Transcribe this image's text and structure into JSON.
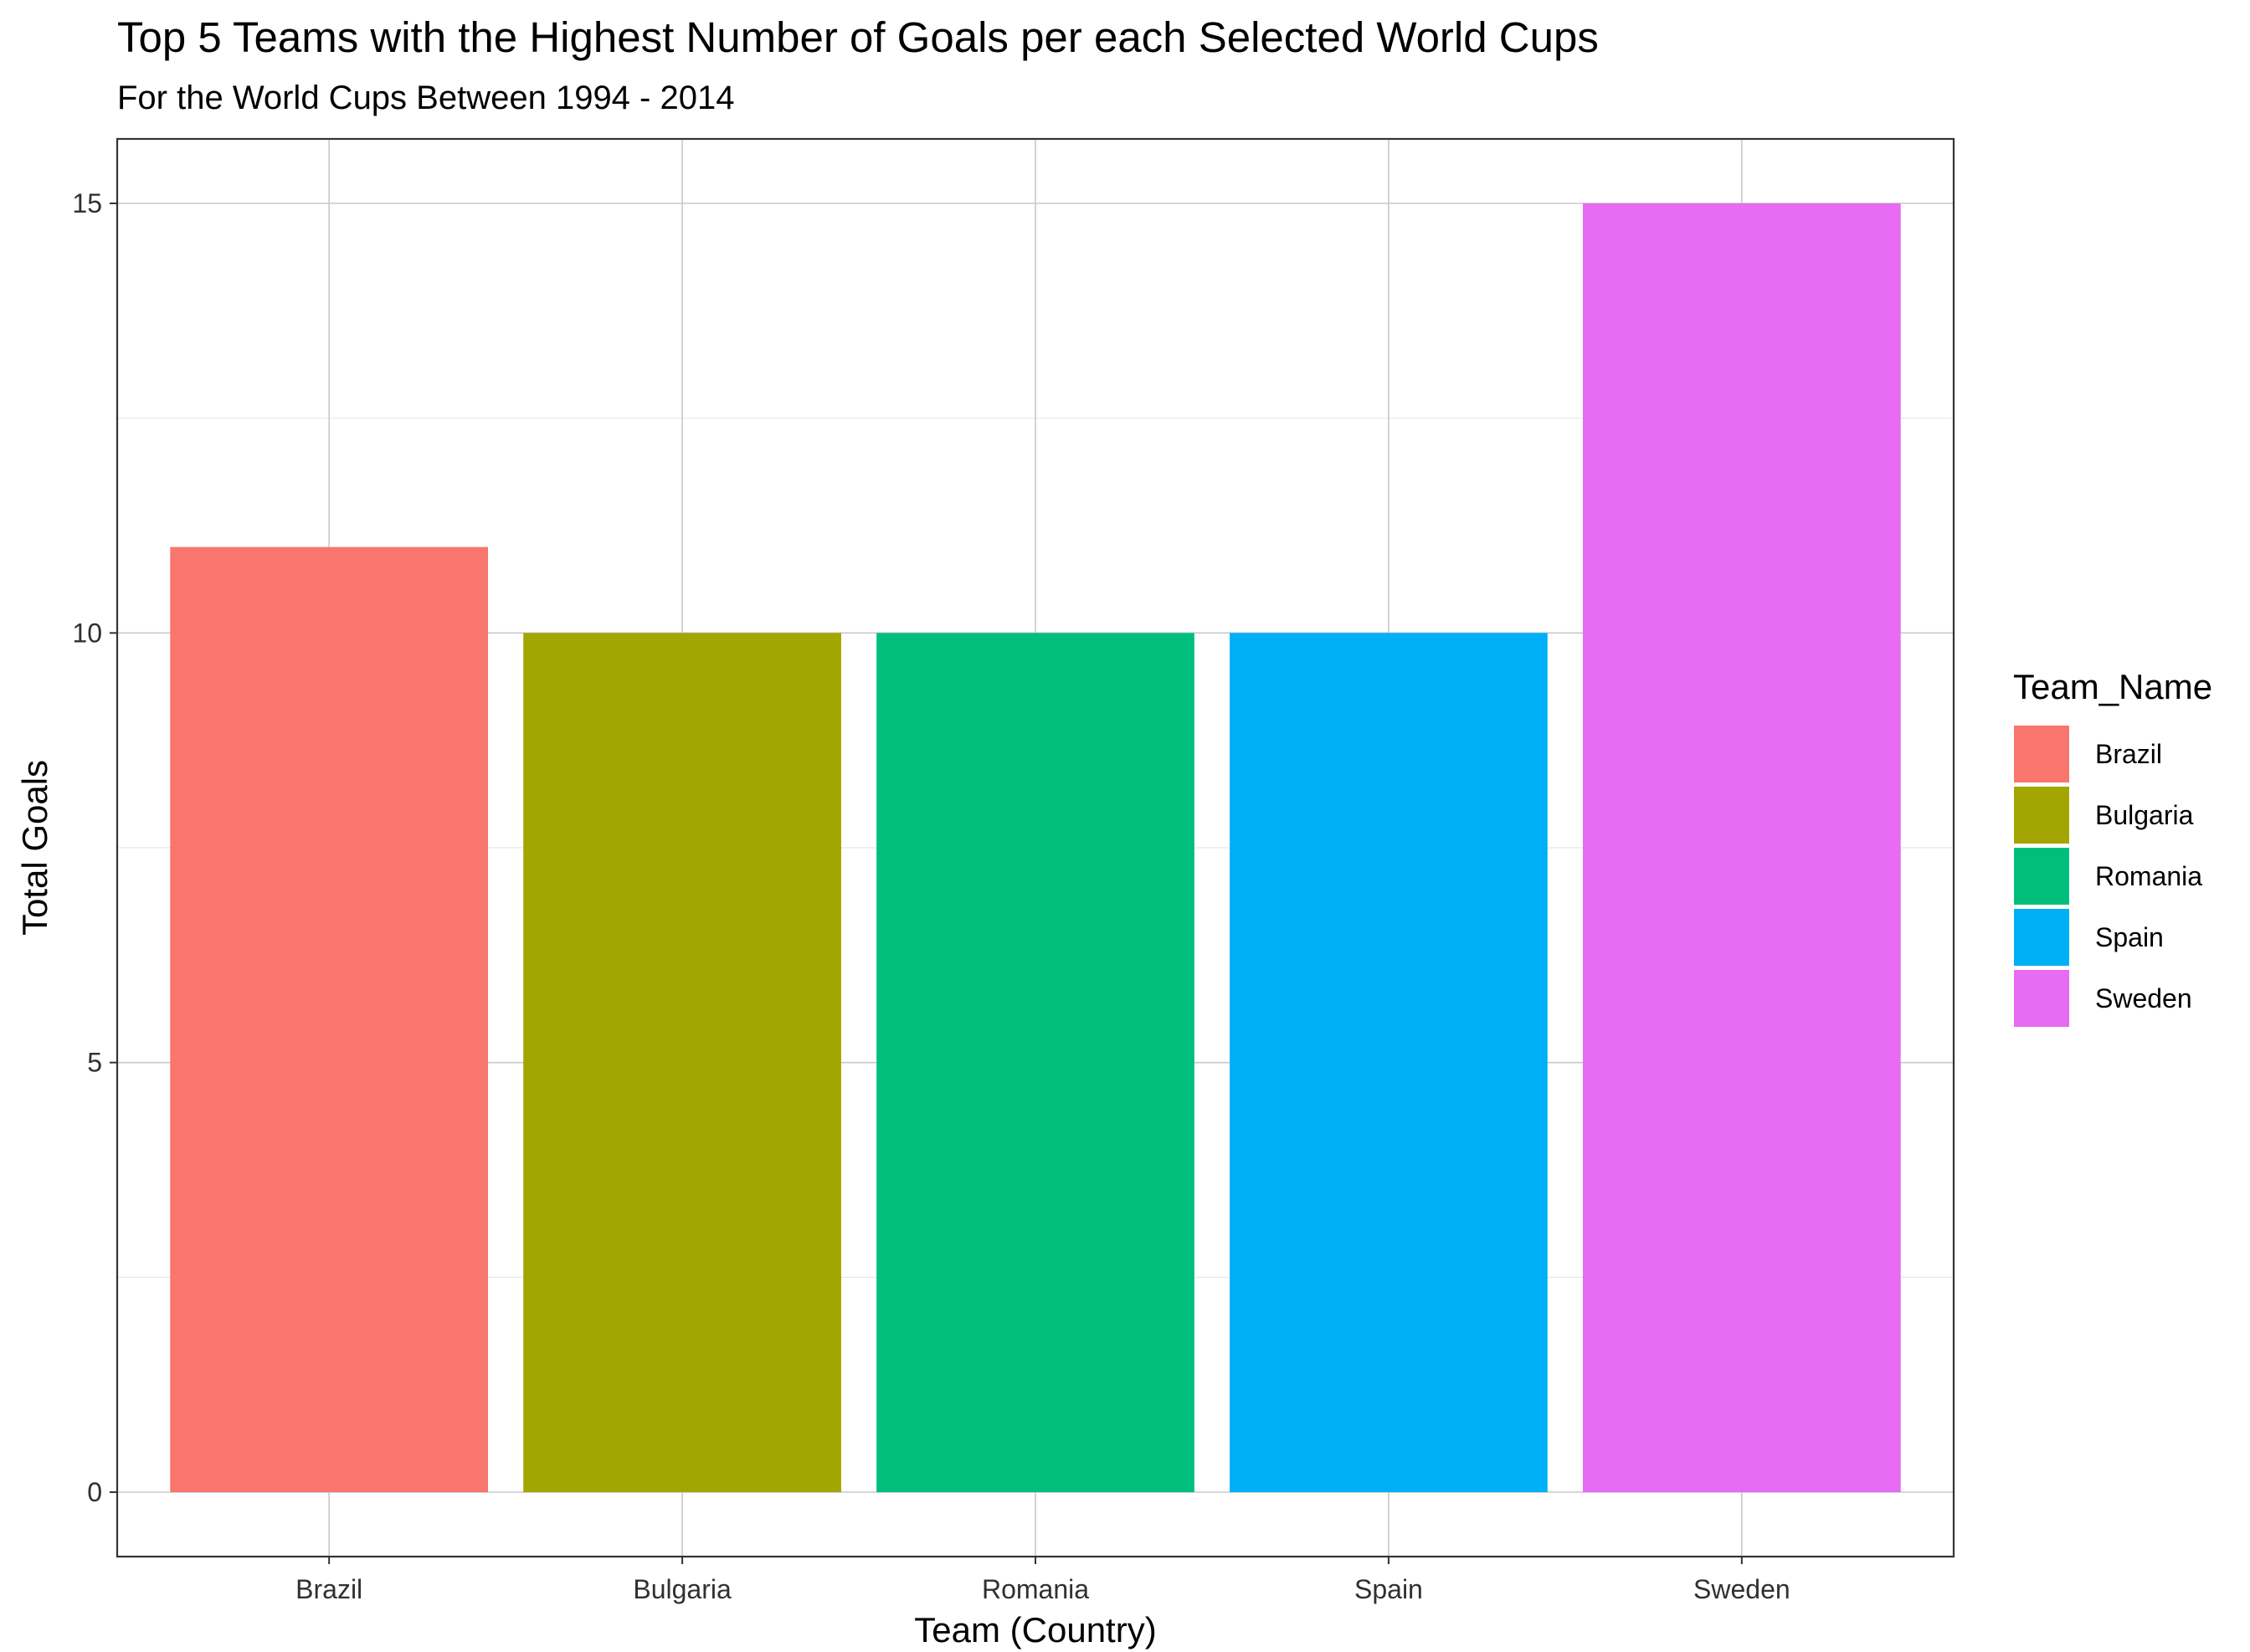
{
  "chart_data": {
    "type": "bar",
    "title": "Top 5 Teams with the Highest Number of Goals per each Selected World Cups",
    "subtitle": "For the World Cups Between 1994 - 2014",
    "xlabel": "Team (Country)",
    "ylabel": "Total Goals",
    "categories": [
      "Brazil",
      "Bulgaria",
      "Romania",
      "Spain",
      "Sweden"
    ],
    "values": [
      11,
      10,
      10,
      10,
      15
    ],
    "colors": [
      "#F8766D",
      "#A3A500",
      "#00BF7D",
      "#00B0F6",
      "#E76BF3"
    ],
    "ylim": [
      -0.75,
      15.75
    ],
    "yticks": [
      0,
      5,
      10,
      15
    ],
    "yticks_minor": [
      2.5,
      7.5,
      12.5
    ],
    "grid": true,
    "legend": {
      "title": "Team_Name",
      "position": "right",
      "entries": [
        "Brazil",
        "Bulgaria",
        "Romania",
        "Spain",
        "Sweden"
      ]
    }
  }
}
